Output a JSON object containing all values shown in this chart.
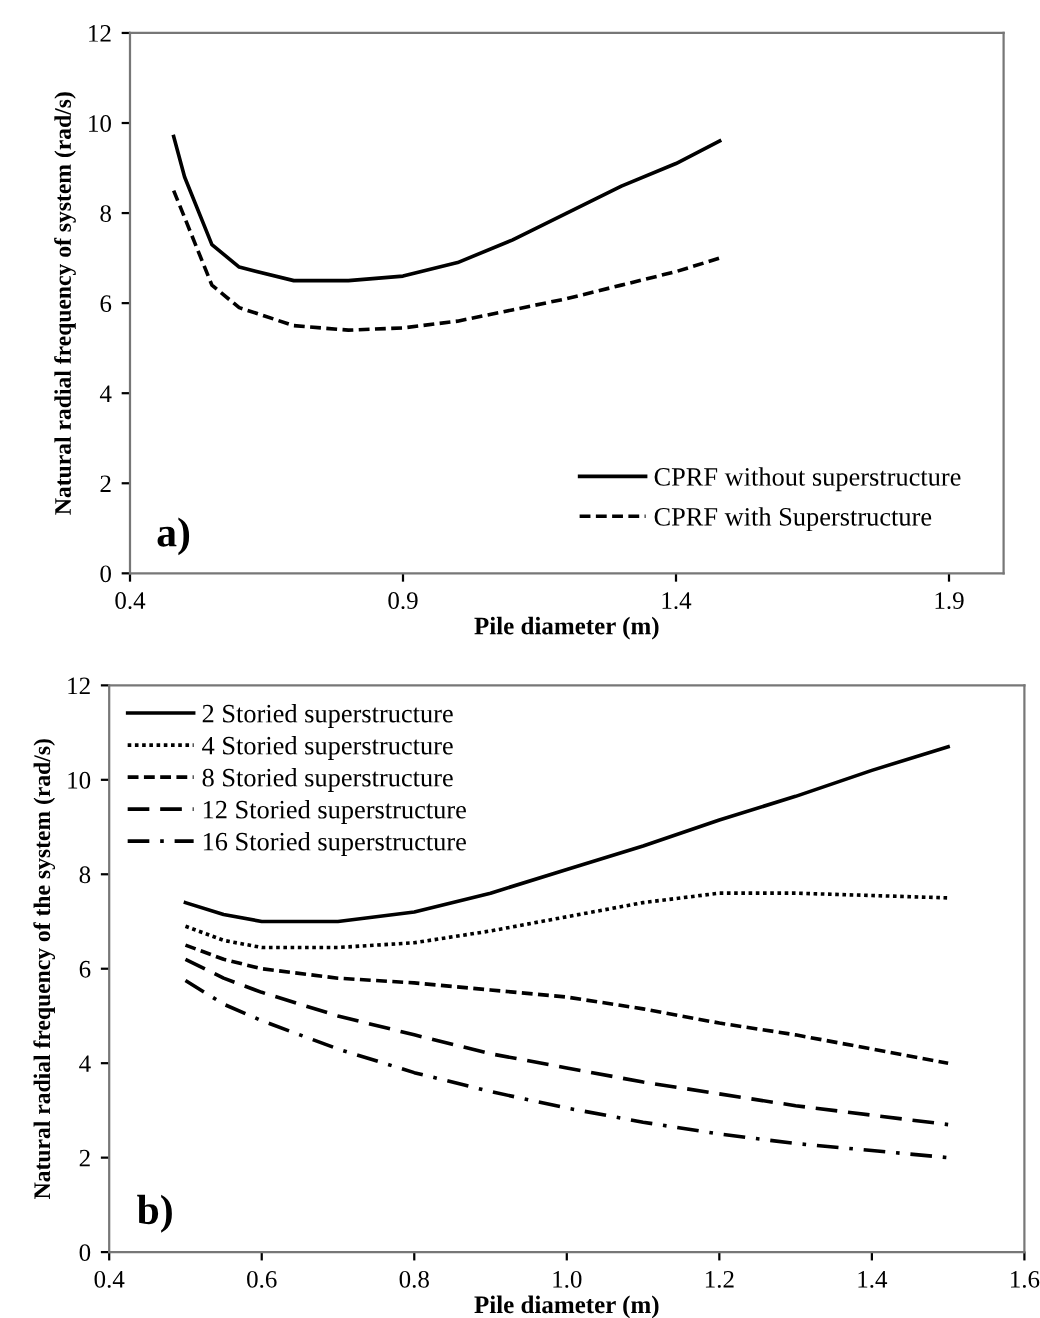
{
  "chart_data": [
    {
      "type": "line",
      "xlabel": "Pile diameter (m)",
      "ylabel": "Natural radial frequency of system (rad/s)",
      "annotations": [
        "a)"
      ],
      "xlim": [
        0.4,
        2.0
      ],
      "xticks": [
        0.4,
        0.9,
        1.4,
        1.9
      ],
      "ylim": [
        0,
        12
      ],
      "yticks": [
        0,
        2,
        4,
        6,
        8,
        10,
        12
      ],
      "grid": false,
      "legend": "bottom right",
      "series": [
        {
          "name": "CPRF without superstructure",
          "color": "#000000",
          "line_style": "solid",
          "x": [
            0.48,
            0.5,
            0.55,
            0.6,
            0.7,
            0.8,
            0.9,
            1.0,
            1.1,
            1.2,
            1.3,
            1.4,
            1.48
          ],
          "values": [
            9.7,
            8.8,
            7.3,
            6.8,
            6.5,
            6.5,
            6.6,
            6.9,
            7.4,
            8.0,
            8.6,
            9.1,
            9.6
          ]
        },
        {
          "name": "CPRF with Superstructure",
          "color": "#000000",
          "line_style": "dashed",
          "x": [
            0.48,
            0.52,
            0.55,
            0.6,
            0.7,
            0.8,
            0.9,
            1.0,
            1.1,
            1.2,
            1.3,
            1.4,
            1.48
          ],
          "values": [
            8.5,
            7.3,
            6.4,
            5.9,
            5.5,
            5.4,
            5.45,
            5.6,
            5.85,
            6.1,
            6.4,
            6.7,
            7.0
          ]
        }
      ]
    },
    {
      "type": "line",
      "xlabel": "Pile diameter (m)",
      "ylabel": "Natural radial frequency of the system (rad/s)",
      "annotations": [
        "b)"
      ],
      "xlim": [
        0.4,
        1.6
      ],
      "xticks": [
        0.4,
        0.6,
        0.8,
        {
          "value": 1.0,
          "label": "1.0"
        },
        1.2,
        1.4,
        1.6
      ],
      "ylim": [
        0,
        12
      ],
      "yticks": [
        0,
        2,
        4,
        6,
        8,
        10,
        12
      ],
      "grid": false,
      "legend": "top left",
      "x": [
        0.5,
        0.55,
        0.6,
        0.7,
        0.8,
        0.9,
        1.0,
        1.1,
        1.2,
        1.3,
        1.4,
        1.5
      ],
      "series": [
        {
          "name": "2 Storied superstructure",
          "color": "#000000",
          "line_style": "solid",
          "values": [
            7.4,
            7.15,
            7.0,
            7.0,
            7.2,
            7.6,
            8.1,
            8.6,
            9.15,
            9.65,
            10.2,
            10.7
          ]
        },
        {
          "name": "4 Storied superstructure",
          "color": "#000000",
          "line_style": "dotted",
          "values": [
            6.9,
            6.6,
            6.45,
            6.45,
            6.55,
            6.8,
            7.1,
            7.4,
            7.6,
            7.6,
            7.55,
            7.5
          ]
        },
        {
          "name": "8 Storied superstructure",
          "color": "#000000",
          "line_style": "dashed",
          "values": [
            6.5,
            6.2,
            6.0,
            5.8,
            5.7,
            5.55,
            5.4,
            5.15,
            4.85,
            4.6,
            4.3,
            4.0
          ]
        },
        {
          "name": "12 Storied superstructure",
          "color": "#000000",
          "line_style": "longdash",
          "values": [
            6.2,
            5.8,
            5.5,
            5.0,
            4.6,
            4.2,
            3.9,
            3.6,
            3.35,
            3.1,
            2.9,
            2.7
          ]
        },
        {
          "name": "16 Storied superstructure",
          "color": "#000000",
          "line_style": "dashdot",
          "values": [
            5.75,
            5.25,
            4.9,
            4.3,
            3.8,
            3.4,
            3.05,
            2.75,
            2.5,
            2.3,
            2.15,
            2.0
          ]
        }
      ]
    }
  ]
}
